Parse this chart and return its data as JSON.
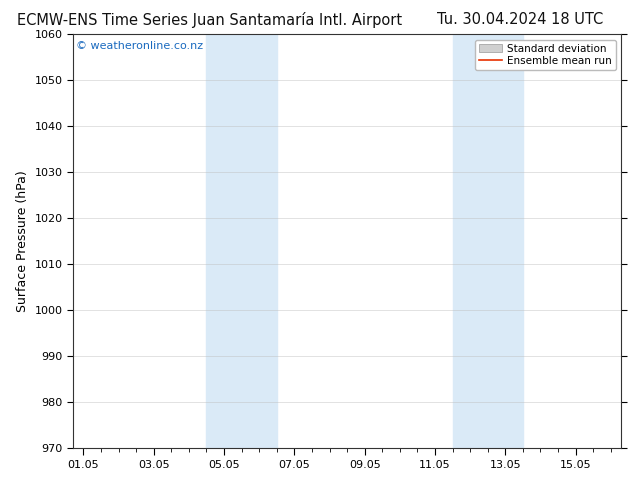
{
  "title_left": "ECMW-ENS Time Series Juan Santamaría Intl. Airport",
  "title_right": "Tu. 30.04.2024 18 UTC",
  "ylabel": "Surface Pressure (hPa)",
  "ylim": [
    970,
    1060
  ],
  "yticks": [
    970,
    980,
    990,
    1000,
    1010,
    1020,
    1030,
    1040,
    1050,
    1060
  ],
  "xtick_labels": [
    "01.05",
    "03.05",
    "05.05",
    "07.05",
    "09.05",
    "11.05",
    "13.05",
    "15.05"
  ],
  "xtick_positions": [
    0,
    2,
    4,
    6,
    8,
    10,
    12,
    14
  ],
  "xlim": [
    -0.3,
    15.3
  ],
  "shaded_bands": [
    {
      "x_start": 3.5,
      "x_end": 5.5
    },
    {
      "x_start": 10.5,
      "x_end": 12.5
    }
  ],
  "shade_color": "#daeaf7",
  "background_color": "#ffffff",
  "watermark_text": "© weatheronline.co.nz",
  "watermark_color": "#1a6abf",
  "legend_entries": [
    {
      "label": "Standard deviation",
      "color": "#d0d0d0",
      "type": "patch"
    },
    {
      "label": "Ensemble mean run",
      "color": "#e83000",
      "type": "line"
    }
  ],
  "title_fontsize": 10.5,
  "ylabel_fontsize": 9,
  "tick_fontsize": 8,
  "grid_color": "#bbbbbb",
  "grid_alpha": 0.6,
  "spine_color": "#333333",
  "watermark_fontsize": 8
}
